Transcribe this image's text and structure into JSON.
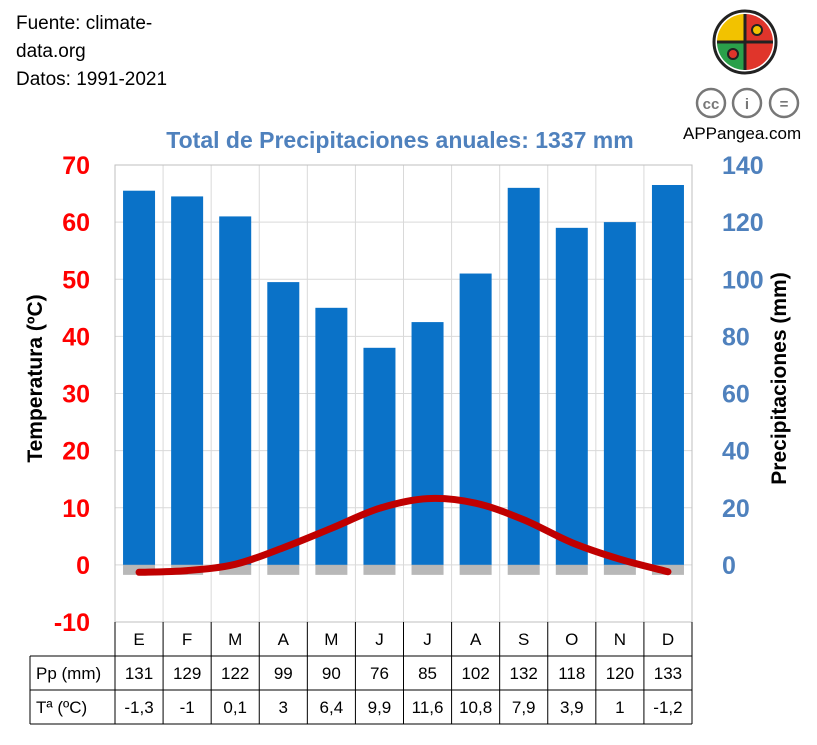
{
  "source": {
    "line1": "Fuente: climate-",
    "line2": "data.org",
    "line3": "Datos: 1991-2021"
  },
  "brand": {
    "name": "APPangea.com",
    "license_icons": [
      "cc-icon",
      "by-icon",
      "nd-icon"
    ],
    "license_labels": [
      "cc",
      "i",
      "="
    ]
  },
  "chart_data": {
    "type": "bar",
    "title": "Total de Precipitaciones anuales: 1337 mm",
    "categories": [
      "E",
      "F",
      "M",
      "A",
      "M",
      "J",
      "J",
      "A",
      "S",
      "O",
      "N",
      "D"
    ],
    "series": [
      {
        "name": "Pp (mm)",
        "type": "bar",
        "axis": "right",
        "color": "#0a72c8",
        "values": [
          131,
          129,
          122,
          99,
          90,
          76,
          85,
          102,
          132,
          118,
          120,
          133
        ],
        "labels": [
          "131",
          "129",
          "122",
          "99",
          "90",
          "76",
          "85",
          "102",
          "132",
          "118",
          "120",
          "133"
        ]
      },
      {
        "name": "Tª (ºC)",
        "type": "line",
        "axis": "left",
        "color": "#c00000",
        "values": [
          -1.3,
          -1,
          0.1,
          3,
          6.4,
          9.9,
          11.6,
          10.8,
          7.9,
          3.9,
          1,
          -1.2
        ],
        "labels": [
          "-1,3",
          "-1",
          "0,1",
          "3",
          "6,4",
          "9,9",
          "11,6",
          "10,8",
          "7,9",
          "3,9",
          "1",
          "-1,2"
        ]
      }
    ],
    "y_left": {
      "label": "Temperatura (ºC)",
      "range": [
        -10,
        70
      ],
      "ticks": [
        "-10",
        "0",
        "10",
        "20",
        "30",
        "40",
        "50",
        "60",
        "70"
      ],
      "color": "#ff0000"
    },
    "y_right": {
      "label": "Precipitaciones (mm)",
      "range": [
        -20,
        140
      ],
      "ticks": [
        "0",
        "20",
        "40",
        "60",
        "80",
        "100",
        "120",
        "140"
      ],
      "color": "#4f81bd"
    },
    "grid": true,
    "legend": "none"
  }
}
